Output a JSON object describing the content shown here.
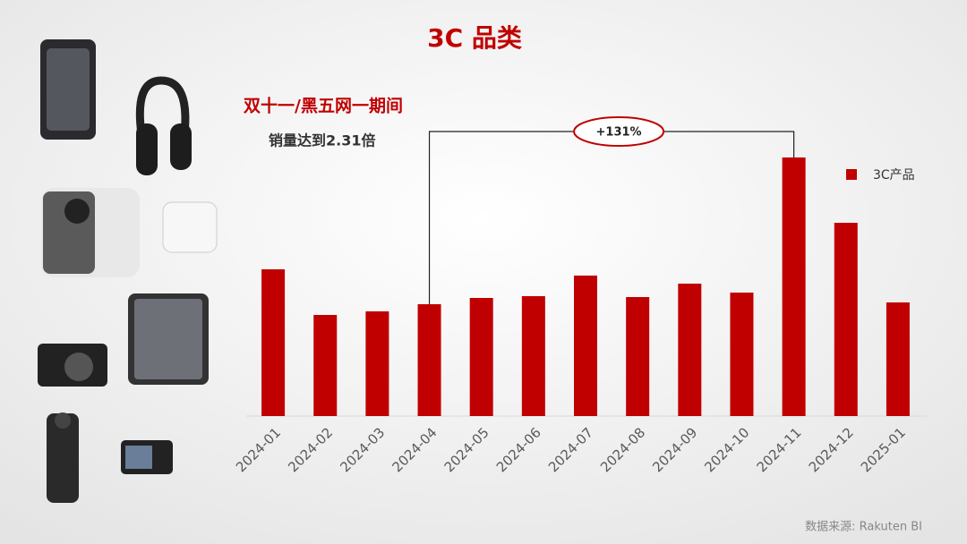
{
  "chart_data": {
    "type": "bar",
    "title": "3C 品类",
    "subtitle": "双十一/黑五网一期间",
    "note": "销量达到2.31倍",
    "annotation": "+131%",
    "source": "数据来源: Rakuten BI",
    "categories": [
      "2024-01",
      "2024-02",
      "2024-03",
      "2024-04",
      "2024-05",
      "2024-06",
      "2024-07",
      "2024-08",
      "2024-09",
      "2024-10",
      "2024-11",
      "2024-12",
      "2025-01"
    ],
    "series": [
      {
        "name": "3C产品",
        "color": "#c00000",
        "values": [
          164,
          113,
          117,
          125,
          132,
          134,
          157,
          133,
          148,
          138,
          289,
          216,
          127
        ]
      }
    ],
    "legend": "right"
  }
}
